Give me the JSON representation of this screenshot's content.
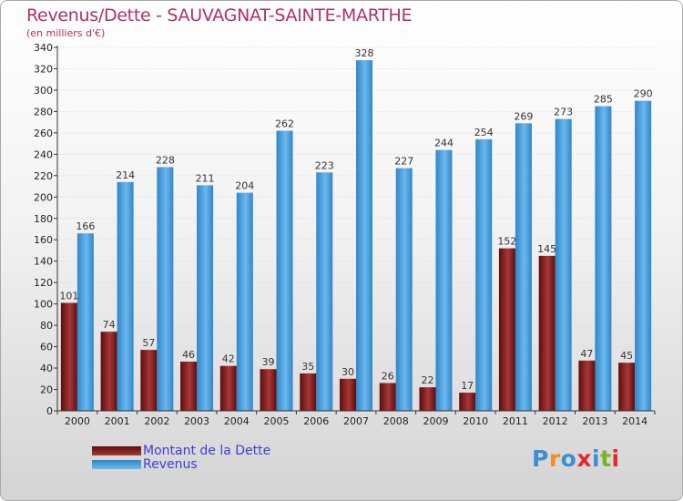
{
  "title": "Revenus/Dette - SAUVAGNAT-SAINTE-MARTHE",
  "subtitle": "(en milliers d'€)",
  "logo": {
    "text": "Proxiti",
    "colors": [
      "#3a8fd6",
      "#ef8f1c",
      "#3a8fd6",
      "#e8262e",
      "#3a8fd6",
      "#77b51f",
      "#e8262e"
    ]
  },
  "colors": {
    "dette_dark": "#5c0d0d",
    "dette_light": "#a83838",
    "revenus_dark": "#2f86c9",
    "revenus_light": "#6cb8ee",
    "axis": "#333333",
    "grid": "#d8d8d8"
  },
  "chart_data": {
    "type": "bar",
    "title": "Revenus/Dette - SAUVAGNAT-SAINTE-MARTHE",
    "subtitle": "(en milliers d'€)",
    "ylim": [
      0,
      340
    ],
    "ytick_step": 20,
    "grid": true,
    "legend_position": "bottom-left",
    "categories": [
      "2000",
      "2001",
      "2002",
      "2003",
      "2004",
      "2005",
      "2006",
      "2007",
      "2008",
      "2009",
      "2010",
      "2011",
      "2012",
      "2013",
      "2014"
    ],
    "series": [
      {
        "name": "Montant de la Dette",
        "values": [
          101,
          74,
          57,
          46,
          42,
          39,
          35,
          30,
          26,
          22,
          17,
          152,
          145,
          47,
          45
        ]
      },
      {
        "name": "Revenus",
        "values": [
          166,
          214,
          228,
          211,
          204,
          262,
          223,
          328,
          227,
          244,
          254,
          269,
          273,
          285,
          290
        ]
      }
    ]
  }
}
